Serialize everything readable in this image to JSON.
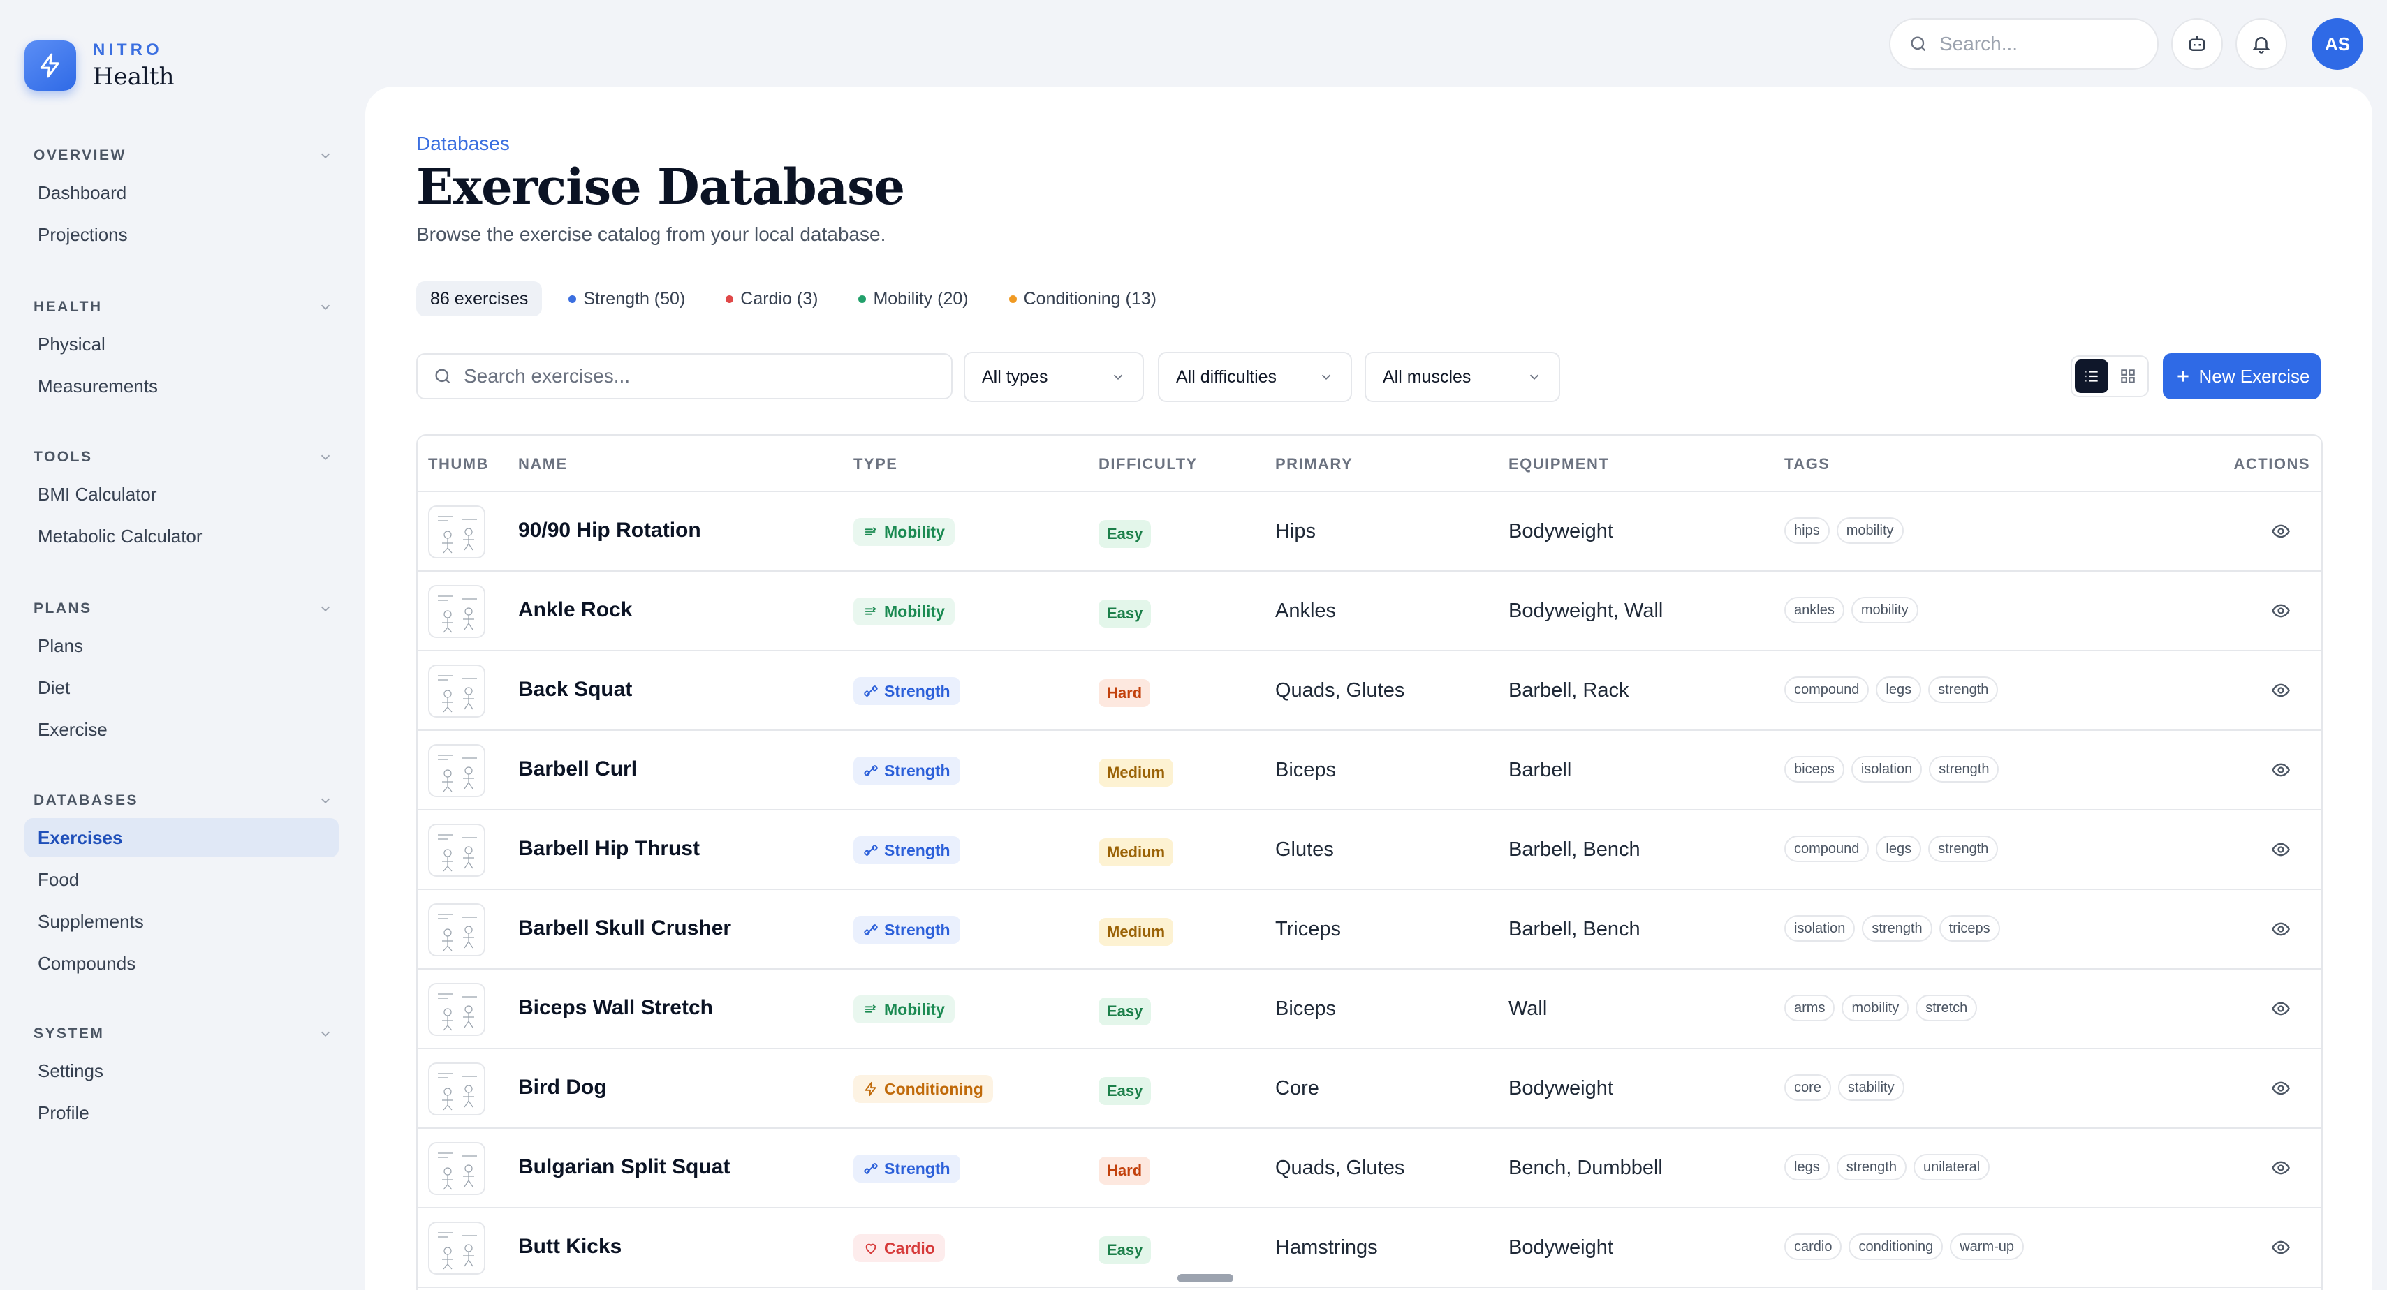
{
  "brand": {
    "top": "NITRO",
    "name": "Health"
  },
  "nav": [
    {
      "heading": "OVERVIEW",
      "items": [
        "Dashboard",
        "Projections"
      ]
    },
    {
      "heading": "HEALTH",
      "items": [
        "Physical",
        "Measurements"
      ]
    },
    {
      "heading": "TOOLS",
      "items": [
        "BMI Calculator",
        "Metabolic Calculator"
      ]
    },
    {
      "heading": "PLANS",
      "items": [
        "Plans",
        "Diet",
        "Exercise"
      ]
    },
    {
      "heading": "DATABASES",
      "items": [
        "Exercises",
        "Food",
        "Supplements",
        "Compounds"
      ],
      "active": "Exercises"
    },
    {
      "heading": "SYSTEM",
      "items": [
        "Settings",
        "Profile"
      ]
    }
  ],
  "topbar": {
    "search_placeholder": "Search...",
    "avatar_initials": "AS"
  },
  "page": {
    "breadcrumb": "Databases",
    "title": "Exercise Database",
    "subtitle": "Browse the exercise catalog from your local database."
  },
  "chips": [
    {
      "label": "86 exercises",
      "color": ""
    },
    {
      "label": "Strength (50)",
      "color": "#3b6fe0"
    },
    {
      "label": "Cardio (3)",
      "color": "#e04848"
    },
    {
      "label": "Mobility (20)",
      "color": "#22a06b"
    },
    {
      "label": "Conditioning (13)",
      "color": "#f09a23"
    }
  ],
  "filters": {
    "search_placeholder": "Search exercises...",
    "type": "All types",
    "difficulty": "All difficulties",
    "muscles": "All muscles"
  },
  "actions": {
    "new_button": "New Exercise"
  },
  "table": {
    "headers": [
      "THUMB",
      "NAME",
      "TYPE",
      "DIFFICULTY",
      "PRIMARY",
      "EQUIPMENT",
      "TAGS",
      "ACTIONS"
    ],
    "rows": [
      {
        "name": "90/90 Hip Rotation",
        "type": "Mobility",
        "difficulty": "Easy",
        "primary": "Hips",
        "equipment": "Bodyweight",
        "tags": [
          "hips",
          "mobility"
        ]
      },
      {
        "name": "Ankle Rock",
        "type": "Mobility",
        "difficulty": "Easy",
        "primary": "Ankles",
        "equipment": "Bodyweight, Wall",
        "tags": [
          "ankles",
          "mobility"
        ]
      },
      {
        "name": "Back Squat",
        "type": "Strength",
        "difficulty": "Hard",
        "primary": "Quads, Glutes",
        "equipment": "Barbell, Rack",
        "tags": [
          "compound",
          "legs",
          "strength"
        ]
      },
      {
        "name": "Barbell Curl",
        "type": "Strength",
        "difficulty": "Medium",
        "primary": "Biceps",
        "equipment": "Barbell",
        "tags": [
          "biceps",
          "isolation",
          "strength"
        ]
      },
      {
        "name": "Barbell Hip Thrust",
        "type": "Strength",
        "difficulty": "Medium",
        "primary": "Glutes",
        "equipment": "Barbell, Bench",
        "tags": [
          "compound",
          "legs",
          "strength"
        ]
      },
      {
        "name": "Barbell Skull Crusher",
        "type": "Strength",
        "difficulty": "Medium",
        "primary": "Triceps",
        "equipment": "Barbell, Bench",
        "tags": [
          "isolation",
          "strength",
          "triceps"
        ]
      },
      {
        "name": "Biceps Wall Stretch",
        "type": "Mobility",
        "difficulty": "Easy",
        "primary": "Biceps",
        "equipment": "Wall",
        "tags": [
          "arms",
          "mobility",
          "stretch"
        ]
      },
      {
        "name": "Bird Dog",
        "type": "Conditioning",
        "difficulty": "Easy",
        "primary": "Core",
        "equipment": "Bodyweight",
        "tags": [
          "core",
          "stability"
        ]
      },
      {
        "name": "Bulgarian Split Squat",
        "type": "Strength",
        "difficulty": "Hard",
        "primary": "Quads, Glutes",
        "equipment": "Bench, Dumbbell",
        "tags": [
          "legs",
          "strength",
          "unilateral"
        ]
      },
      {
        "name": "Butt Kicks",
        "type": "Cardio",
        "difficulty": "Easy",
        "primary": "Hamstrings",
        "equipment": "Bodyweight",
        "tags": [
          "cardio",
          "conditioning",
          "warm-up"
        ]
      }
    ]
  },
  "type_styles": {
    "Mobility": {
      "bg": "#e9f7ef",
      "fg": "#1b8a52",
      "icon": "mobility-icon"
    },
    "Strength": {
      "bg": "#eaf0fd",
      "fg": "#2b5fd9",
      "icon": "strength-icon"
    },
    "Conditioning": {
      "bg": "#fdf3e3",
      "fg": "#c06a0a",
      "icon": "bolt-icon"
    },
    "Cardio": {
      "bg": "#fdecec",
      "fg": "#d63a3a",
      "icon": "heart-icon"
    }
  },
  "difficulty_styles": {
    "Easy": {
      "bg": "#e3f6ea",
      "fg": "#1b7f49"
    },
    "Medium": {
      "bg": "#fdf2d2",
      "fg": "#9a6206"
    },
    "Hard": {
      "bg": "#fde8df",
      "fg": "#c2410c"
    }
  }
}
